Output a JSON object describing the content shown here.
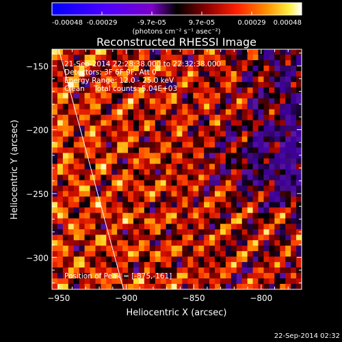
{
  "chart_data": {
    "type": "heatmap",
    "title": "Reconstructed RHESSI Image",
    "xlabel": "Heliocentric X (arcsec)",
    "ylabel": "Heliocentric Y (arcsec)",
    "xlim": [
      -955,
      -770
    ],
    "ylim": [
      -325,
      -137
    ],
    "xticks": [
      -950,
      -900,
      -850,
      -800
    ],
    "yticks": [
      -150,
      -200,
      -250,
      -300
    ],
    "colorbar": {
      "ticks": [
        "-0.00048",
        "-0.00029",
        "-9.7e-05",
        "9.7e-05",
        "0.00029",
        "0.00048"
      ],
      "range": [
        -0.00048,
        0.00048
      ],
      "unit_label": "(photons cm⁻² s⁻¹ asec⁻²)"
    },
    "annotations": [
      "21-Sep-2014 22:28:38.000 to 22:32:38.000",
      "Detectors: 3F 6F 9F, Att 0",
      "Energy Range: 12.0 - 25.0 keV",
      "Clean    Total counts: 5.04E+03"
    ],
    "peak_label": "Position of Peak = [-875,-161]",
    "limb_line": {
      "x": [
        -950,
        -902
      ],
      "y": [
        -137,
        -325
      ]
    },
    "timestamp": "22-Sep-2014 02:32"
  }
}
